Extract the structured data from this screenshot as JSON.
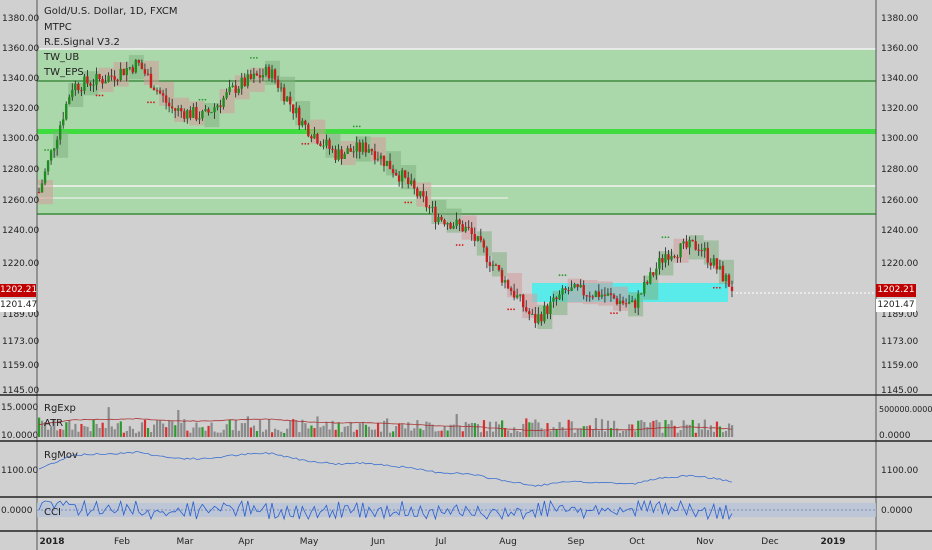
{
  "main_pane": {
    "symbol_title": "Gold/U.S. Dollar, 1D, FXCM",
    "indicators": [
      "MTPC",
      "R.E.Signal V3.2",
      "TW_UB",
      "TW_EPS"
    ],
    "last_price_red": "1202.21",
    "last_price_white": "1201.47",
    "colors": {
      "bullish": "#1e8c1e",
      "bearish": "#c81e1e",
      "zone": "#8fd08f",
      "cyan_zone": "#40f0f0",
      "background": "#d0d0d0"
    }
  },
  "volume_pane": {
    "labels": [
      "RgExp",
      "ATR"
    ],
    "left_ticks": [
      "15.0000",
      "10.0000"
    ],
    "right_ticks": [
      "500000.0000",
      "0.0000"
    ]
  },
  "rgmov_pane": {
    "label": "RgMov",
    "left_ticks": [
      "1100.00"
    ],
    "right_ticks": [
      "1100.00"
    ]
  },
  "cci_pane": {
    "label": "CCI",
    "left_ticks": [
      "0.0000"
    ],
    "right_ticks": [
      "0.0000"
    ]
  },
  "x_axis": {
    "labels": [
      "2018",
      "Feb",
      "Mar",
      "Apr",
      "May",
      "Jun",
      "Jul",
      "Aug",
      "Sep",
      "Oct",
      "Nov",
      "Dec",
      "2019"
    ]
  },
  "chart_data": {
    "type": "candlestick",
    "y_axis_labels": [
      "1380.00",
      "1360.00",
      "1340.00",
      "1320.00",
      "1300.00",
      "1280.00",
      "1260.00",
      "1240.00",
      "1220.00",
      "1201.47",
      "1189.00",
      "1173.00",
      "1159.00",
      "1145.00"
    ],
    "price_path": [
      {
        "x": "2018",
        "y": 1265
      },
      {
        "x": "Jan-mid",
        "y": 1335
      },
      {
        "x": "Feb",
        "y": 1340
      },
      {
        "x": "Feb-mid",
        "y": 1350
      },
      {
        "x": "Mar",
        "y": 1320
      },
      {
        "x": "Mar-mid",
        "y": 1315
      },
      {
        "x": "Apr",
        "y": 1335
      },
      {
        "x": "Apr-mid",
        "y": 1345
      },
      {
        "x": "May",
        "y": 1310
      },
      {
        "x": "May-mid",
        "y": 1290
      },
      {
        "x": "Jun",
        "y": 1295
      },
      {
        "x": "Jun-mid",
        "y": 1275
      },
      {
        "x": "Jul",
        "y": 1250
      },
      {
        "x": "Jul-mid",
        "y": 1240
      },
      {
        "x": "Aug",
        "y": 1210
      },
      {
        "x": "Aug-mid",
        "y": 1180
      },
      {
        "x": "Sep",
        "y": 1200
      },
      {
        "x": "Sep-mid",
        "y": 1198
      },
      {
        "x": "Oct",
        "y": 1190
      },
      {
        "x": "Oct-mid",
        "y": 1225
      },
      {
        "x": "Nov",
        "y": 1230
      },
      {
        "x": "Nov-mid",
        "y": 1202
      }
    ],
    "zones": {
      "green_top": 1359,
      "green_bottom": 1250,
      "cyan_top": 1205,
      "cyan_bottom": 1196
    }
  }
}
